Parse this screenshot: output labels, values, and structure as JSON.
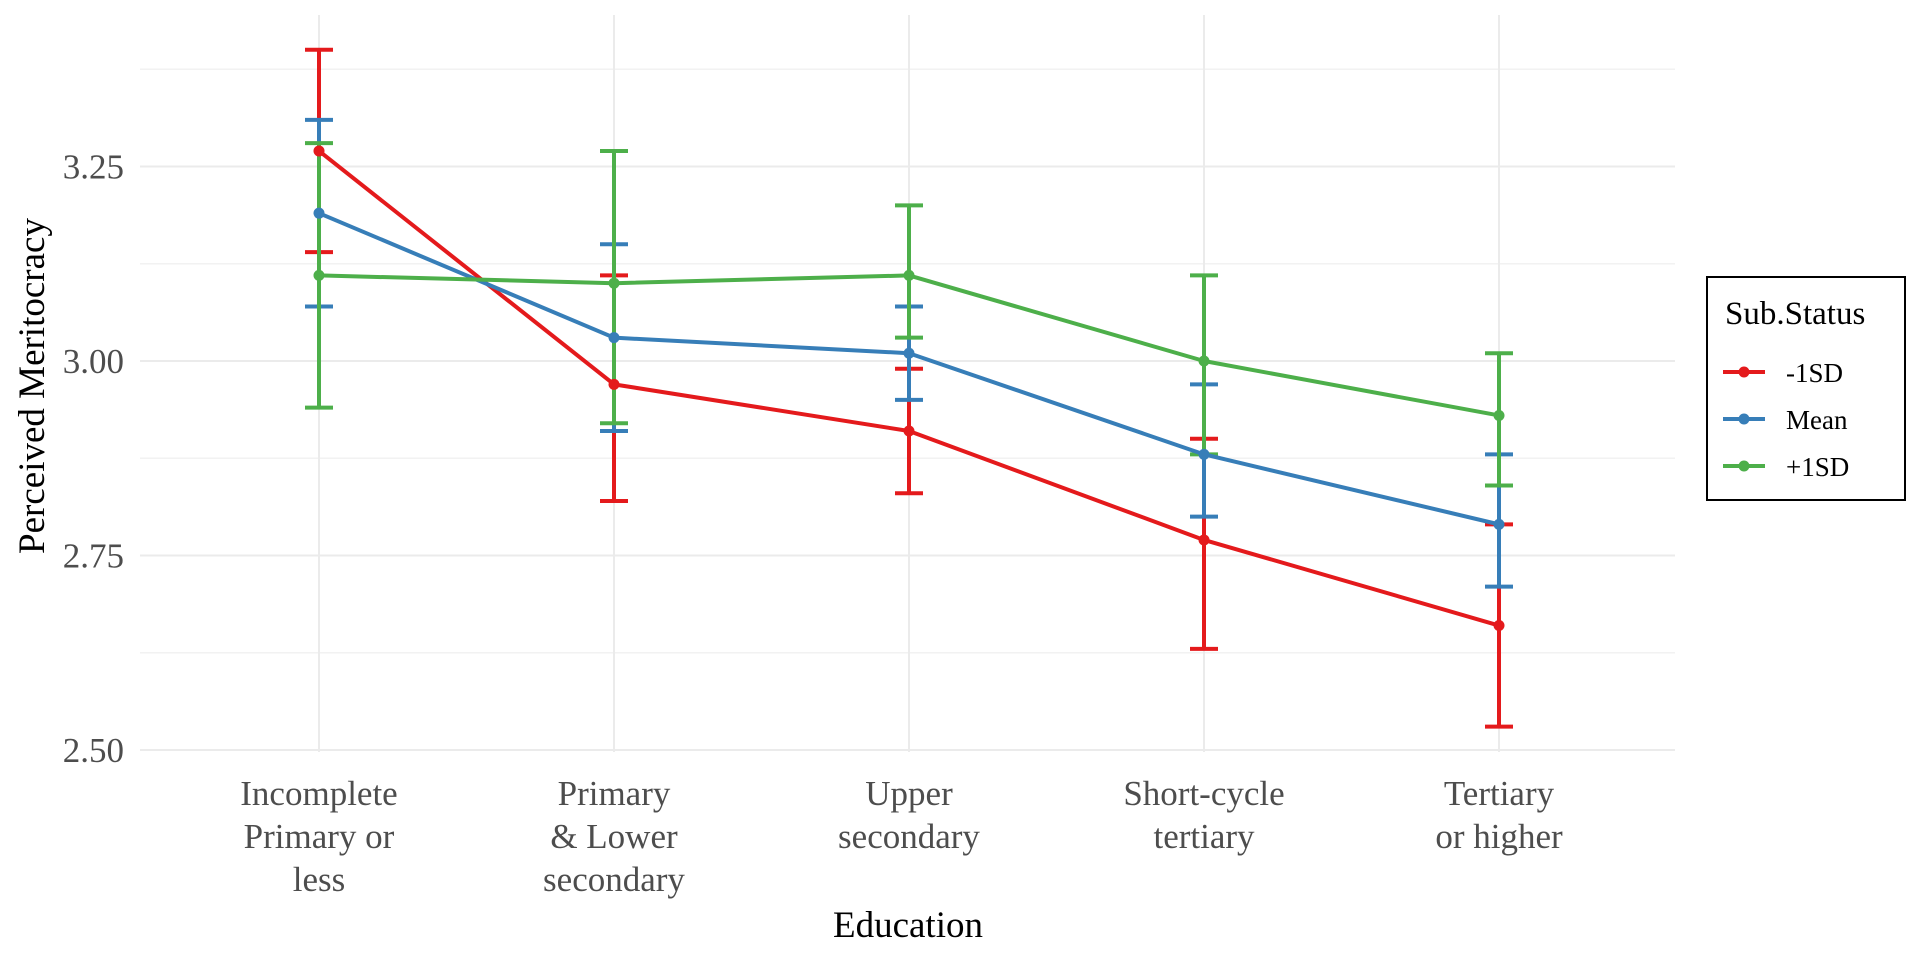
{
  "chart_data": {
    "type": "line",
    "xlabel": "Education",
    "ylabel": "Perceived Meritocracy",
    "ylim": [
      2.5,
      3.4
    ],
    "yticks": [
      "2.50",
      "2.75",
      "3.00",
      "3.25"
    ],
    "categories": [
      [
        "Incomplete",
        "Primary or",
        "less"
      ],
      [
        "Primary",
        "& Lower",
        "secondary"
      ],
      [
        "Upper",
        "secondary"
      ],
      [
        "Short-cycle",
        "tertiary"
      ],
      [
        "Tertiary",
        "or higher"
      ]
    ],
    "grid": true,
    "legend": {
      "title": "Sub.Status",
      "position": "right"
    },
    "series": [
      {
        "name": "-1SD",
        "color": "#e41a1c",
        "values": [
          3.27,
          2.97,
          2.91,
          2.77,
          2.66
        ],
        "lower": [
          3.14,
          2.82,
          2.83,
          2.63,
          2.53
        ],
        "upper": [
          3.4,
          3.11,
          2.99,
          2.9,
          2.79
        ]
      },
      {
        "name": "Mean",
        "color": "#377eb8",
        "values": [
          3.19,
          3.03,
          3.01,
          2.88,
          2.79
        ],
        "lower": [
          3.07,
          2.91,
          2.95,
          2.8,
          2.71
        ],
        "upper": [
          3.31,
          3.15,
          3.07,
          2.97,
          2.88
        ]
      },
      {
        "name": "+1SD",
        "color": "#4daf4a",
        "values": [
          3.11,
          3.1,
          3.11,
          3.0,
          2.93
        ],
        "lower": [
          2.94,
          2.92,
          3.03,
          2.88,
          2.84
        ],
        "upper": [
          3.28,
          3.27,
          3.2,
          3.11,
          3.01
        ]
      }
    ]
  }
}
